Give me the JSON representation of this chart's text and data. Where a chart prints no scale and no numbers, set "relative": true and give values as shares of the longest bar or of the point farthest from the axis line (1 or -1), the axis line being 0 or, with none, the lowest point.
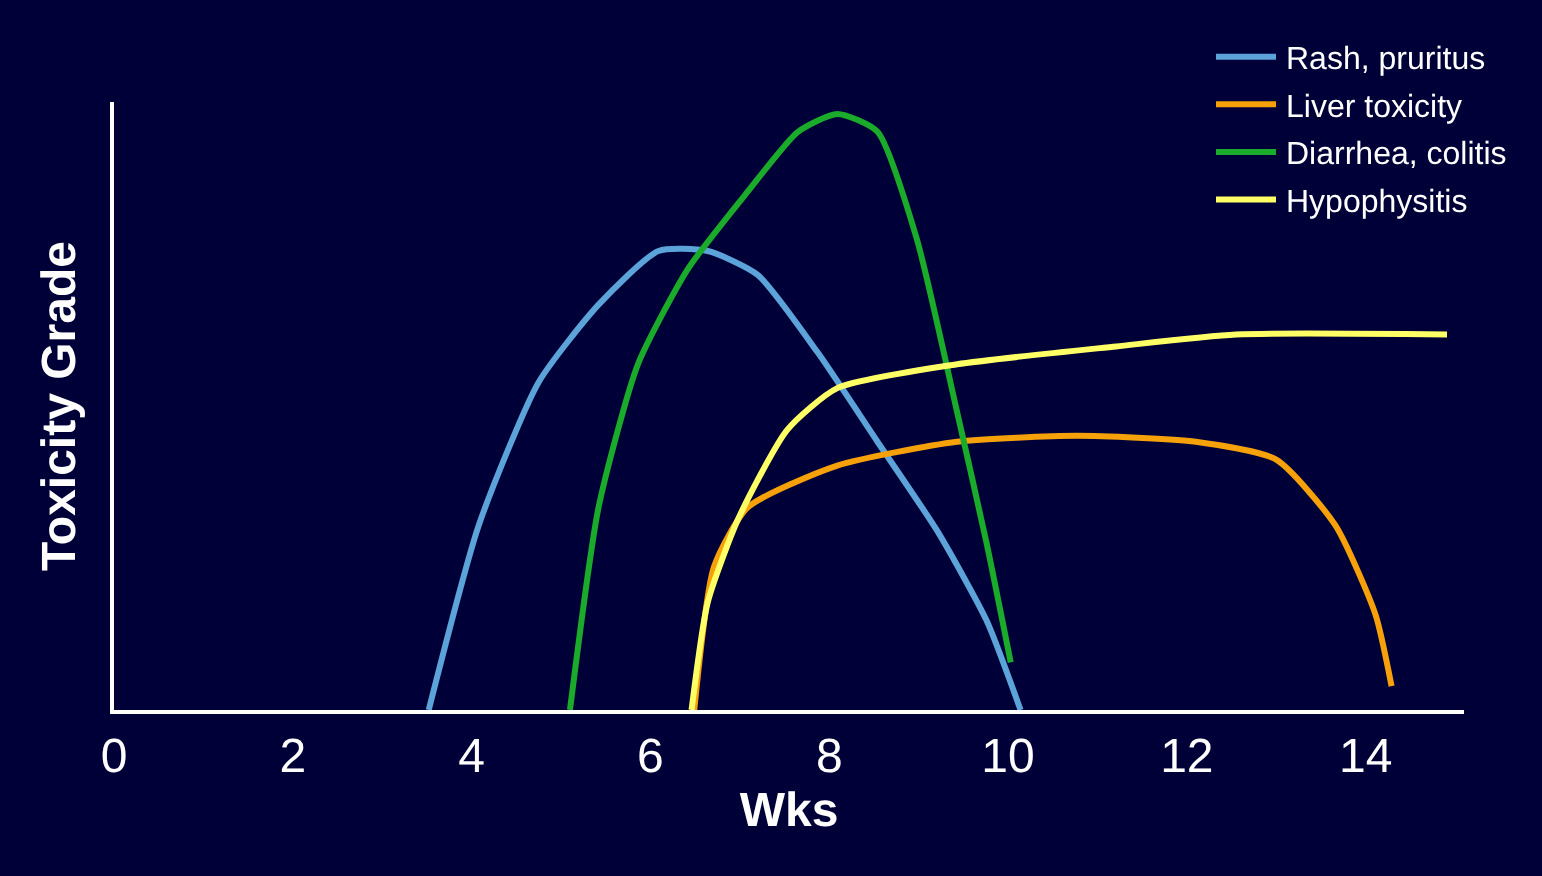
{
  "chart_data": {
    "type": "line",
    "relative": true,
    "xlabel": "Wks",
    "ylabel": "Toxicity Grade",
    "xlim": [
      0,
      15.1
    ],
    "xticks": [
      0,
      2,
      4,
      6,
      8,
      10,
      12,
      14
    ],
    "grid": false,
    "legend": "top right",
    "marker": "none",
    "line_style": "solid",
    "series": [
      {
        "name": "Rash, pruritus",
        "color": "#5ba3d9",
        "x": [
          3.52,
          4.08,
          4.75,
          5.42,
          6.09,
          6.64,
          7.2,
          7.87,
          8.54,
          9.21,
          9.76,
          10.14
        ],
        "values": [
          0,
          0.31,
          0.55,
          0.68,
          0.77,
          0.77,
          0.73,
          0.6,
          0.45,
          0.3,
          0.15,
          0
        ]
      },
      {
        "name": "Liver toxicity",
        "color": "#f7a10a",
        "x": [
          6.49,
          6.71,
          7.09,
          8.09,
          9.43,
          10.77,
          12.1,
          13,
          13.66,
          14.11,
          14.29
        ],
        "values": [
          0,
          0.24,
          0.34,
          0.41,
          0.45,
          0.46,
          0.45,
          0.42,
          0.31,
          0.16,
          0.04
        ]
      },
      {
        "name": "Diarrhea, colitis",
        "color": "#1aab2b",
        "x": [
          5.1,
          5.42,
          5.86,
          6.42,
          7.09,
          7.65,
          8.09,
          8.54,
          8.98,
          9.43,
          9.76,
          10.03
        ],
        "values": [
          0,
          0.34,
          0.58,
          0.74,
          0.87,
          0.97,
          1,
          0.97,
          0.79,
          0.5,
          0.28,
          0.08
        ]
      },
      {
        "name": "Hypophysitis",
        "color": "#ffff66",
        "x": [
          6.46,
          6.64,
          6.98,
          7.53,
          8.09,
          9.43,
          11.21,
          12.55,
          14.91
        ],
        "values": [
          0,
          0.18,
          0.32,
          0.47,
          0.54,
          0.58,
          0.61,
          0.63,
          0.63
        ]
      }
    ]
  }
}
